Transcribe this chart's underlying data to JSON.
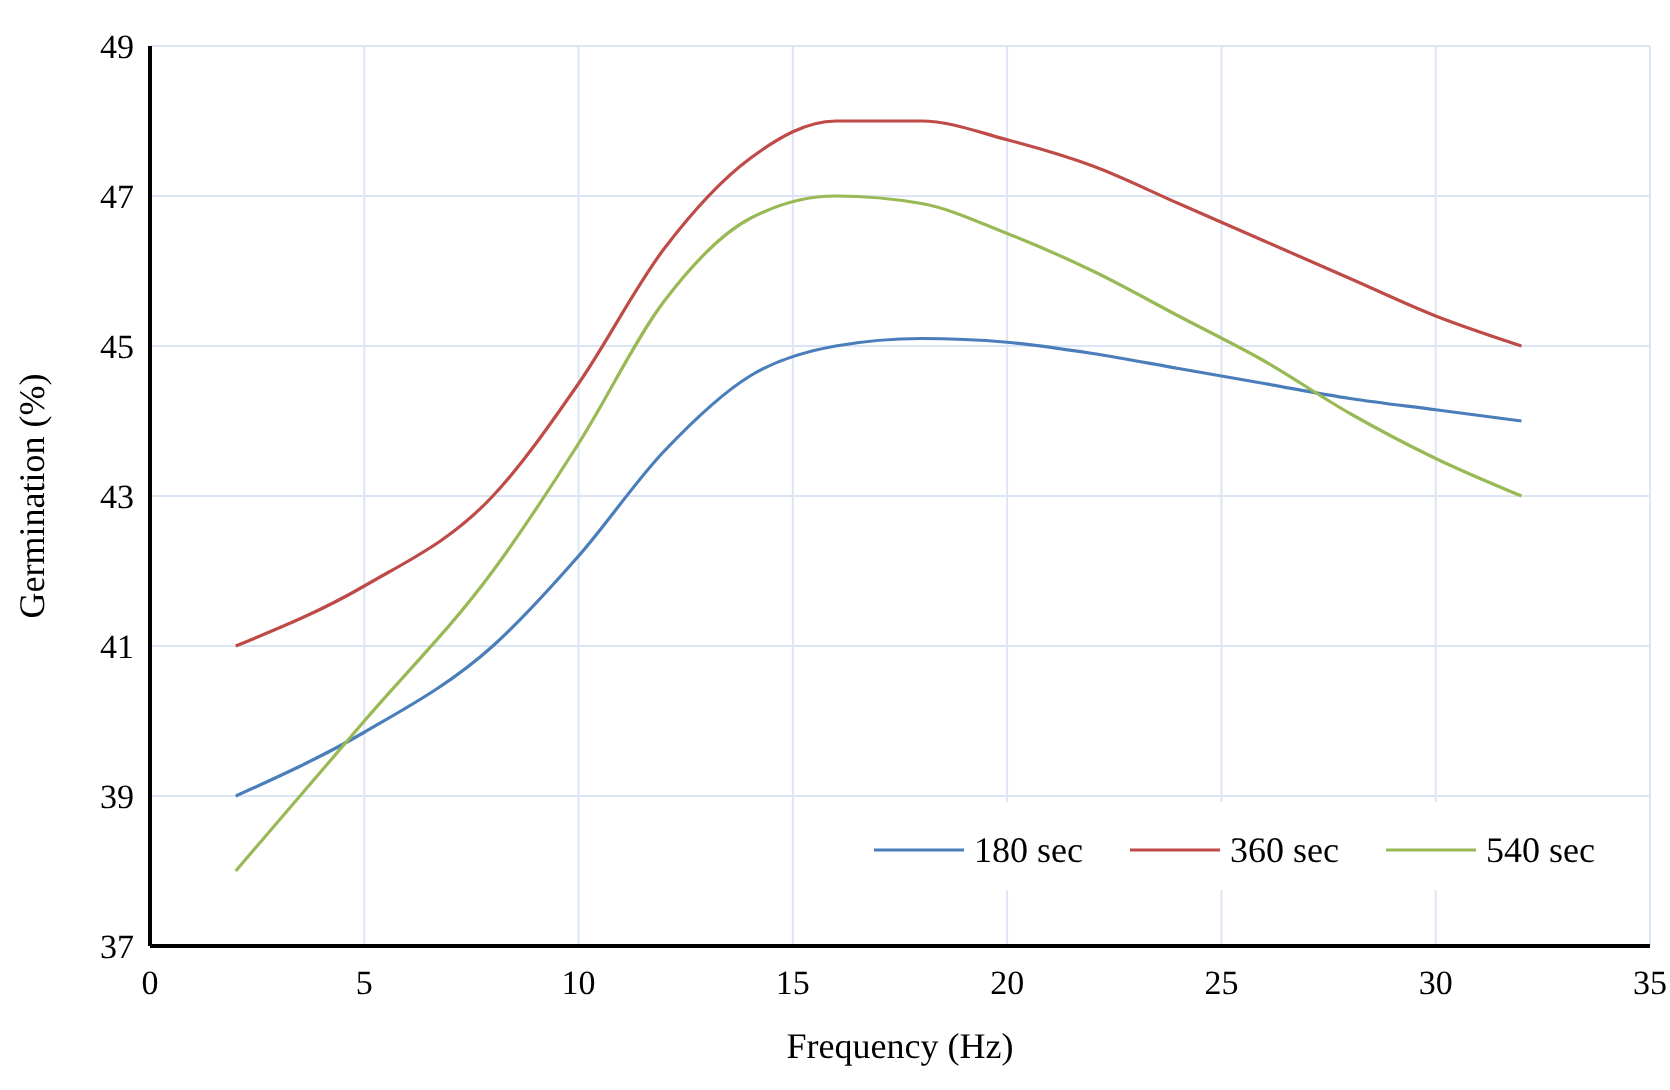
{
  "chart_data": {
    "type": "line",
    "xlabel": "Frequency (Hz)",
    "ylabel": "Germination (%)",
    "x": [
      2,
      5,
      8,
      10,
      12,
      14,
      16,
      18,
      20,
      22,
      24,
      26,
      28,
      30,
      32
    ],
    "xlim": [
      0,
      35
    ],
    "xticks": [
      0,
      5,
      10,
      15,
      20,
      25,
      30,
      35
    ],
    "ylim": [
      37,
      49
    ],
    "yticks": [
      37,
      39,
      41,
      43,
      45,
      47,
      49
    ],
    "grid": true,
    "legend": "bottom right",
    "marker": "none",
    "line_style": "solid",
    "series": [
      {
        "name": "180 sec",
        "color": "#4a7ebb",
        "values": [
          39,
          39.85,
          41.0,
          42.2,
          43.6,
          44.6,
          45.0,
          45.1,
          45.05,
          44.9,
          44.7,
          44.5,
          44.3,
          44.15,
          44.0
        ]
      },
      {
        "name": "360 sec",
        "color": "#be4b48",
        "values": [
          41,
          41.8,
          43.0,
          44.5,
          46.3,
          47.5,
          48.0,
          48.0,
          47.75,
          47.4,
          46.9,
          46.4,
          45.9,
          45.4,
          45.0
        ]
      },
      {
        "name": "540 sec",
        "color": "#98b954",
        "values": [
          38,
          40.0,
          42.0,
          43.7,
          45.6,
          46.7,
          47.0,
          46.9,
          46.5,
          46.0,
          45.4,
          44.8,
          44.1,
          43.5,
          43.0
        ]
      }
    ]
  }
}
